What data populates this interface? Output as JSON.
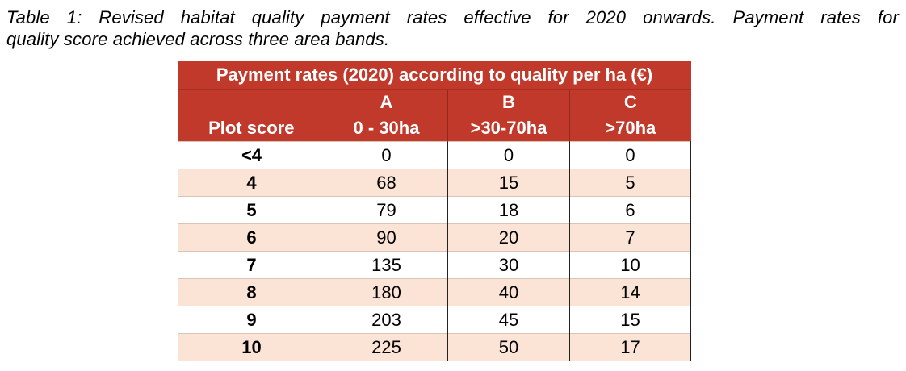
{
  "caption": {
    "line1": "Table 1: Revised habitat quality payment rates effective for 2020 onwards. Payment rates for",
    "line2": "quality score achieved across three area bands."
  },
  "table": {
    "title": "Payment rates (2020) according to quality per ha (€)",
    "band_letters": [
      "A",
      "B",
      "C"
    ],
    "score_header": "Plot score",
    "band_ranges": [
      "0 - 30ha",
      ">30-70ha",
      ">70ha"
    ],
    "rows": [
      {
        "score": "<4",
        "a": "0",
        "b": "0",
        "c": "0"
      },
      {
        "score": "4",
        "a": "68",
        "b": "15",
        "c": "5"
      },
      {
        "score": "5",
        "a": "79",
        "b": "18",
        "c": "6"
      },
      {
        "score": "6",
        "a": "90",
        "b": "20",
        "c": "7"
      },
      {
        "score": "7",
        "a": "135",
        "b": "30",
        "c": "10"
      },
      {
        "score": "8",
        "a": "180",
        "b": "40",
        "c": "14"
      },
      {
        "score": "9",
        "a": "203",
        "b": "45",
        "c": "15"
      },
      {
        "score": "10",
        "a": "225",
        "b": "50",
        "c": "17"
      }
    ]
  },
  "colors": {
    "header_bg": "#c0392b",
    "header_text": "#ffffff",
    "alt_row_bg": "#fbe4d5"
  }
}
